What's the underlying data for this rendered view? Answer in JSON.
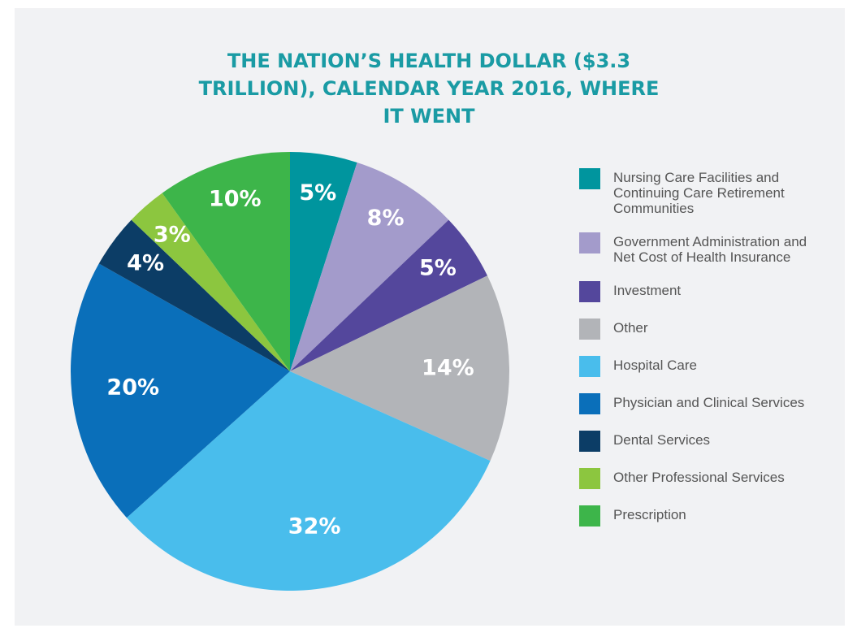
{
  "chart_data": {
    "type": "pie",
    "title": "THE NATION’S HEALTH DOLLAR ($3.3 TRILLION), CALENDAR YEAR 2016, WHERE IT WENT",
    "categories": [
      "Nursing Care Facilities and Continuing Care Retirement Communities",
      "Government Administration and Net Cost of Health Insurance",
      "Investment",
      "Other",
      "Hospital Care",
      "Physician and Clinical Services",
      "Dental Services",
      "Other Professional Services",
      "Prescription"
    ],
    "values": [
      5,
      8,
      5,
      14,
      32,
      20,
      4,
      3,
      10
    ],
    "value_labels": [
      "5%",
      "8%",
      "5%",
      "14%",
      "32%",
      "20%",
      "4%",
      "3%",
      "10%"
    ],
    "colors": [
      "#00959e",
      "#a39bcb",
      "#54479c",
      "#b2b4b8",
      "#49bdec",
      "#0a6fba",
      "#0c3d66",
      "#8cc63f",
      "#3db54a"
    ]
  }
}
